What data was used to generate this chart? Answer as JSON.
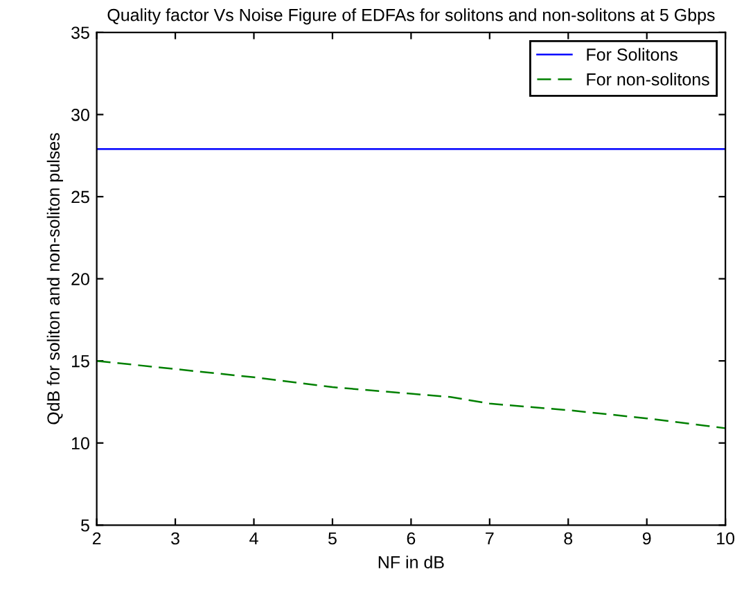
{
  "chart_data": {
    "type": "line",
    "title": "Quality factor Vs Noise Figure of EDFAs for solitons and non-solitons at 5 Gbps",
    "xlabel": "NF in dB",
    "ylabel": "QdB for soliton and non-soliton pulses",
    "series": [
      {
        "name": "For Solitons",
        "color": "#0000ff",
        "x": [
          2,
          10
        ],
        "values": [
          27.9,
          27.9
        ],
        "line_style": "solid"
      },
      {
        "name": "For non-solitons",
        "color": "#008000",
        "x": [
          2,
          3,
          4,
          5,
          6,
          6.5,
          7,
          8,
          9,
          10
        ],
        "values": [
          15.0,
          14.5,
          14.0,
          13.4,
          13.0,
          12.8,
          12.4,
          12.0,
          11.5,
          10.9
        ],
        "line_style": "dashed"
      }
    ],
    "xlim": [
      2,
      10
    ],
    "xticks": [
      2,
      3,
      4,
      5,
      6,
      7,
      8,
      9,
      10
    ],
    "ylim": [
      5,
      35
    ],
    "yticks": [
      5,
      10,
      15,
      20,
      25,
      30,
      35
    ],
    "grid": false,
    "legend": "top right"
  }
}
